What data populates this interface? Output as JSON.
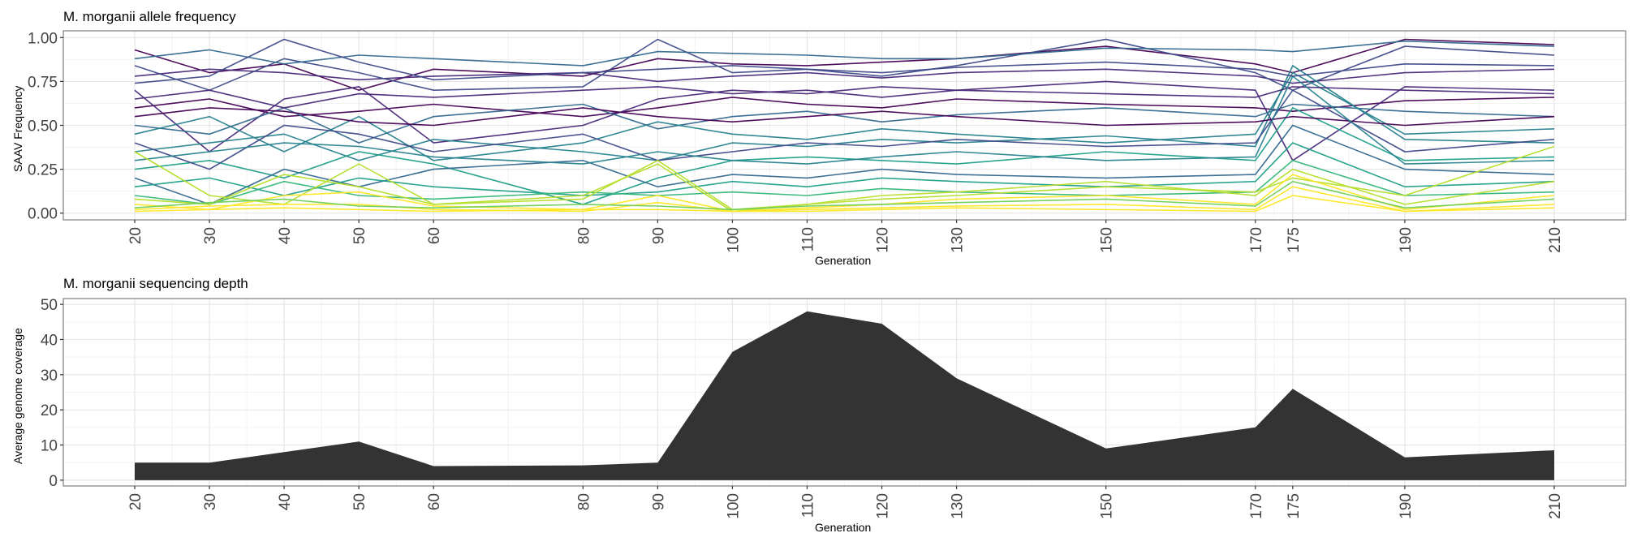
{
  "colors": {
    "panel_border": "#7f7f7f",
    "grid_major": "#e6e6e6",
    "grid_minor": "#f3f3f3",
    "area_fill": "#333333",
    "viridis": [
      "#440154",
      "#482878",
      "#3e4a89",
      "#31688e",
      "#26828e",
      "#1f9e89",
      "#35b779",
      "#6ece58",
      "#b5de2b",
      "#fde725"
    ]
  },
  "chart_data": [
    {
      "type": "line",
      "title": "M. morganii allele frequency",
      "xlabel": "Generation",
      "ylabel": "SAAV Frequency",
      "x": [
        20,
        30,
        40,
        50,
        60,
        80,
        90,
        100,
        110,
        120,
        130,
        150,
        170,
        175,
        190,
        210
      ],
      "x_tick_labels": [
        "20",
        "30",
        "40",
        "50",
        "60",
        "80",
        "90",
        "100",
        "110",
        "120",
        "130",
        "150",
        "170",
        "175",
        "190",
        "210"
      ],
      "y_tick_labels": [
        "0.00",
        "0.25",
        "0.50",
        "0.75",
        "1.00"
      ],
      "y_ticks": [
        0,
        0.25,
        0.5,
        0.75,
        1.0
      ],
      "ylim": [
        0,
        1
      ],
      "colormap": "viridis",
      "legend": "none",
      "grid": true,
      "series": [
        {
          "values": [
            0.93,
            0.8,
            0.85,
            0.7,
            0.82,
            0.78,
            0.88,
            0.85,
            0.84,
            0.86,
            0.88,
            0.95,
            0.85,
            0.8,
            0.99,
            0.96
          ],
          "color_index": 0
        },
        {
          "values": [
            0.78,
            0.82,
            0.8,
            0.76,
            0.78,
            0.8,
            0.75,
            0.78,
            0.8,
            0.77,
            0.8,
            0.82,
            0.78,
            0.74,
            0.8,
            0.82
          ],
          "color_index": 1
        },
        {
          "values": [
            0.84,
            0.7,
            0.88,
            0.8,
            0.7,
            0.72,
            0.99,
            0.8,
            0.82,
            0.78,
            0.84,
            0.99,
            0.8,
            0.7,
            0.95,
            0.9
          ],
          "color_index": 2
        },
        {
          "values": [
            0.6,
            0.65,
            0.55,
            0.58,
            0.62,
            0.55,
            0.6,
            0.66,
            0.62,
            0.6,
            0.65,
            0.62,
            0.6,
            0.58,
            0.64,
            0.66
          ],
          "color_index": 0
        },
        {
          "values": [
            0.7,
            0.35,
            0.65,
            0.72,
            0.4,
            0.5,
            0.65,
            0.7,
            0.68,
            0.72,
            0.7,
            0.75,
            0.7,
            0.3,
            0.72,
            0.7
          ],
          "color_index": 1
        },
        {
          "values": [
            0.5,
            0.45,
            0.6,
            0.4,
            0.55,
            0.62,
            0.48,
            0.55,
            0.58,
            0.52,
            0.56,
            0.6,
            0.55,
            0.62,
            0.58,
            0.55
          ],
          "color_index": 3
        },
        {
          "values": [
            0.45,
            0.55,
            0.35,
            0.55,
            0.3,
            0.4,
            0.52,
            0.45,
            0.42,
            0.48,
            0.45,
            0.4,
            0.45,
            0.8,
            0.45,
            0.48
          ],
          "color_index": 4
        },
        {
          "values": [
            0.35,
            0.4,
            0.45,
            0.3,
            0.42,
            0.35,
            0.3,
            0.4,
            0.38,
            0.42,
            0.4,
            0.44,
            0.38,
            0.84,
            0.42,
            0.4
          ],
          "color_index": 4
        },
        {
          "values": [
            0.25,
            0.3,
            0.2,
            0.35,
            0.28,
            0.05,
            0.2,
            0.3,
            0.32,
            0.3,
            0.28,
            0.35,
            0.3,
            0.6,
            0.3,
            0.32
          ],
          "color_index": 5
        },
        {
          "values": [
            0.2,
            0.05,
            0.25,
            0.15,
            0.25,
            0.3,
            0.15,
            0.22,
            0.2,
            0.25,
            0.22,
            0.2,
            0.22,
            0.5,
            0.25,
            0.22
          ],
          "color_index": 3
        },
        {
          "values": [
            0.4,
            0.25,
            0.5,
            0.45,
            0.35,
            0.45,
            0.3,
            0.35,
            0.4,
            0.38,
            0.42,
            0.38,
            0.4,
            0.7,
            0.35,
            0.42
          ],
          "color_index": 2
        },
        {
          "values": [
            0.15,
            0.2,
            0.1,
            0.2,
            0.15,
            0.1,
            0.12,
            0.18,
            0.15,
            0.2,
            0.18,
            0.15,
            0.18,
            0.4,
            0.15,
            0.18
          ],
          "color_index": 5
        },
        {
          "values": [
            0.65,
            0.7,
            0.6,
            0.68,
            0.66,
            0.7,
            0.72,
            0.68,
            0.7,
            0.66,
            0.7,
            0.68,
            0.66,
            0.72,
            0.7,
            0.68
          ],
          "color_index": 1
        },
        {
          "values": [
            0.55,
            0.6,
            0.58,
            0.52,
            0.5,
            0.6,
            0.55,
            0.52,
            0.55,
            0.58,
            0.55,
            0.5,
            0.52,
            0.55,
            0.5,
            0.55
          ],
          "color_index": 0
        },
        {
          "values": [
            0.3,
            0.35,
            0.4,
            0.38,
            0.32,
            0.28,
            0.35,
            0.3,
            0.28,
            0.32,
            0.35,
            0.3,
            0.32,
            0.78,
            0.28,
            0.3
          ],
          "color_index": 4
        },
        {
          "values": [
            0.1,
            0.05,
            0.18,
            0.1,
            0.08,
            0.12,
            0.1,
            0.12,
            0.1,
            0.14,
            0.12,
            0.1,
            0.12,
            0.3,
            0.1,
            0.12
          ],
          "color_index": 6
        },
        {
          "values": [
            0.35,
            0.1,
            0.05,
            0.28,
            0.05,
            0.08,
            0.3,
            0.02,
            0.05,
            0.08,
            0.1,
            0.15,
            0.12,
            0.2,
            0.1,
            0.38
          ],
          "color_index": 8
        },
        {
          "values": [
            0.08,
            0.05,
            0.22,
            0.15,
            0.05,
            0.1,
            0.28,
            0.01,
            0.05,
            0.1,
            0.12,
            0.18,
            0.1,
            0.25,
            0.05,
            0.18
          ],
          "color_index": 8
        },
        {
          "values": [
            0.05,
            0.02,
            0.1,
            0.12,
            0.04,
            0.02,
            0.1,
            0.01,
            0.03,
            0.05,
            0.08,
            0.1,
            0.05,
            0.22,
            0.02,
            0.1
          ],
          "color_index": 9
        },
        {
          "values": [
            0.02,
            0.04,
            0.05,
            0.05,
            0.02,
            0.01,
            0.06,
            0.01,
            0.02,
            0.03,
            0.04,
            0.05,
            0.02,
            0.15,
            0.01,
            0.05
          ],
          "color_index": 9
        },
        {
          "values": [
            0.03,
            0.06,
            0.08,
            0.04,
            0.03,
            0.05,
            0.04,
            0.02,
            0.04,
            0.05,
            0.06,
            0.08,
            0.04,
            0.18,
            0.03,
            0.08
          ],
          "color_index": 7
        },
        {
          "values": [
            0.01,
            0.02,
            0.03,
            0.02,
            0.01,
            0.02,
            0.02,
            0.01,
            0.01,
            0.02,
            0.03,
            0.02,
            0.01,
            0.1,
            0.01,
            0.03
          ],
          "color_index": 9
        },
        {
          "values": [
            0.88,
            0.93,
            0.85,
            0.9,
            0.88,
            0.84,
            0.92,
            0.91,
            0.9,
            0.88,
            0.88,
            0.94,
            0.93,
            0.92,
            0.98,
            0.95
          ],
          "color_index": 3
        },
        {
          "values": [
            0.74,
            0.78,
            0.99,
            0.86,
            0.76,
            0.8,
            0.82,
            0.84,
            0.82,
            0.8,
            0.83,
            0.86,
            0.82,
            0.78,
            0.85,
            0.84
          ],
          "color_index": 2
        }
      ]
    },
    {
      "type": "area",
      "title": "M. morganii sequencing depth",
      "xlabel": "Generation",
      "ylabel": "Average genome coverage",
      "x": [
        20,
        30,
        40,
        50,
        60,
        80,
        90,
        100,
        110,
        120,
        130,
        150,
        170,
        175,
        190,
        210
      ],
      "x_tick_labels": [
        "20",
        "30",
        "40",
        "50",
        "60",
        "80",
        "90",
        "100",
        "110",
        "120",
        "130",
        "150",
        "170",
        "175",
        "190",
        "210"
      ],
      "values": [
        5,
        5,
        8,
        11,
        4,
        4.2,
        5,
        36.5,
        48,
        44.5,
        29,
        9,
        15,
        26,
        6.5,
        8.5
      ],
      "y_tick_labels": [
        "0",
        "10",
        "20",
        "30",
        "40",
        "50"
      ],
      "y_ticks": [
        0,
        10,
        20,
        30,
        40,
        50
      ],
      "ylim": [
        0,
        50
      ],
      "legend": "none",
      "grid": true
    }
  ]
}
